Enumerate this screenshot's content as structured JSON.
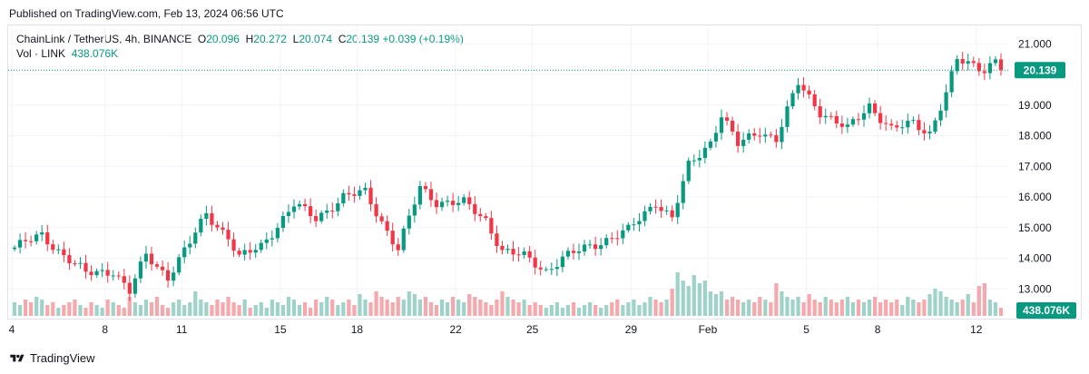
{
  "header": {
    "published": "Published on TradingView.com, Feb 13, 2024 06:56 UTC"
  },
  "legend": {
    "symbol": "ChainLink / TetherUS, 4h, BINANCE",
    "open_label": "O",
    "open": "20.096",
    "high_label": "H",
    "high": "20.272",
    "low_label": "L",
    "low": "20.074",
    "close_label": "C",
    "close": "20.139",
    "change": "+0.039 (+0.19%)",
    "volume_label": "Vol · LINK",
    "volume_value": "438.076K"
  },
  "footer": {
    "brand": "TradingView"
  },
  "colors": {
    "up": "#089981",
    "down": "#f23645",
    "vol_up": "#9fd3ca",
    "vol_down": "#f5a9ad",
    "grid": "#f0f3fa"
  },
  "chart_data": {
    "type": "candlestick",
    "symbol": "ChainLink / TetherUS",
    "interval": "4h",
    "exchange": "BINANCE",
    "ylim": [
      12.0,
      21.6
    ],
    "y_ticks": [
      "13.000",
      "14.000",
      "15.000",
      "16.000",
      "17.000",
      "18.000",
      "19.000",
      "20.000",
      "21.000"
    ],
    "x_ticks": [
      "4",
      "8",
      "11",
      "15",
      "18",
      "22",
      "25",
      "29",
      "Feb",
      "5",
      "8",
      "12"
    ],
    "last_price": "20.139",
    "last_volume": "438.076K",
    "anchors": [
      [
        0,
        14.35
      ],
      [
        5,
        14.75
      ],
      [
        9,
        14.1
      ],
      [
        13,
        13.5
      ],
      [
        18,
        13.6
      ],
      [
        21,
        12.9
      ],
      [
        24,
        14.1
      ],
      [
        28,
        13.4
      ],
      [
        32,
        14.5
      ],
      [
        35,
        15.45
      ],
      [
        39,
        14.7
      ],
      [
        41,
        14.0
      ],
      [
        45,
        14.4
      ],
      [
        51,
        15.75
      ],
      [
        55,
        15.3
      ],
      [
        60,
        16.0
      ],
      [
        64,
        16.15
      ],
      [
        67,
        15.2
      ],
      [
        70,
        14.3
      ],
      [
        74,
        16.3
      ],
      [
        77,
        15.85
      ],
      [
        82,
        15.8
      ],
      [
        86,
        15.25
      ],
      [
        89,
        14.25
      ],
      [
        93,
        14.05
      ],
      [
        97,
        13.6
      ],
      [
        100,
        14.0
      ],
      [
        105,
        14.4
      ],
      [
        112,
        14.9
      ],
      [
        117,
        15.85
      ],
      [
        120,
        15.3
      ],
      [
        123,
        17.0
      ],
      [
        127,
        17.8
      ],
      [
        129,
        18.7
      ],
      [
        132,
        17.7
      ],
      [
        136,
        18.15
      ],
      [
        139,
        17.9
      ],
      [
        143,
        19.7
      ],
      [
        147,
        18.8
      ],
      [
        152,
        18.2
      ],
      [
        156,
        19.0
      ],
      [
        160,
        18.2
      ],
      [
        164,
        18.4
      ],
      [
        167,
        18.1
      ],
      [
        170,
        19.4
      ],
      [
        172,
        20.45
      ],
      [
        177,
        20.2
      ],
      [
        180,
        20.6
      ],
      [
        184,
        20.14
      ]
    ],
    "volume_base": [
      0.5,
      0.4,
      0.6,
      0.5,
      0.7,
      0.6,
      0.4,
      0.5,
      0.3,
      0.4,
      0.5,
      0.6,
      0.4,
      0.3,
      0.5,
      0.4,
      0.3,
      0.6,
      0.5,
      0.4,
      0.3,
      0.7,
      0.5,
      0.4,
      0.6,
      0.5,
      0.7,
      0.4,
      0.3,
      0.5,
      0.6,
      0.4,
      0.5,
      0.9,
      0.6,
      0.5,
      0.4,
      0.6,
      0.5,
      0.7,
      0.5,
      0.4,
      0.6,
      0.3,
      0.4,
      0.5,
      0.3,
      0.6,
      0.5,
      0.4,
      0.7,
      0.6,
      0.4,
      0.5,
      0.3,
      0.6,
      0.5,
      0.7,
      0.6,
      0.4,
      0.5,
      0.6,
      0.4,
      0.8,
      0.6,
      0.5,
      0.9,
      0.7,
      0.6,
      0.5,
      0.7,
      0.6,
      0.9,
      0.8,
      0.6,
      0.7,
      0.5,
      0.4,
      0.6,
      0.5,
      0.7,
      0.6,
      0.5,
      0.8,
      0.7,
      0.6,
      0.5,
      0.4,
      0.6,
      0.9,
      0.7,
      0.6,
      0.5,
      0.6,
      0.4,
      0.5,
      0.4,
      0.3,
      0.4,
      0.5,
      0.3,
      0.4,
      0.5,
      0.3,
      0.4,
      0.5,
      0.4,
      0.3,
      0.4,
      0.5,
      0.6,
      0.4,
      0.5,
      0.6,
      0.4,
      0.5,
      0.7,
      0.6,
      0.5,
      0.6,
      1.0,
      1.6,
      1.3,
      1.1,
      1.5,
      1.2,
      1.3,
      0.9,
      0.8,
      0.9,
      0.6,
      0.7,
      0.6,
      0.5,
      0.6,
      0.5,
      0.7,
      0.6,
      0.5,
      1.2,
      0.9,
      0.7,
      0.6,
      0.7,
      0.5,
      0.8,
      0.6,
      0.5,
      0.7,
      0.6,
      0.5,
      0.6,
      0.7,
      0.5,
      0.6,
      0.5,
      0.6,
      0.7,
      0.5,
      0.6,
      0.5,
      0.6,
      0.4,
      0.7,
      0.6,
      0.5,
      0.6,
      0.8,
      1.0,
      0.9,
      0.7,
      0.6,
      0.5,
      0.6,
      0.8,
      0.5,
      1.1,
      1.2,
      0.6,
      0.5,
      0.3
    ]
  }
}
